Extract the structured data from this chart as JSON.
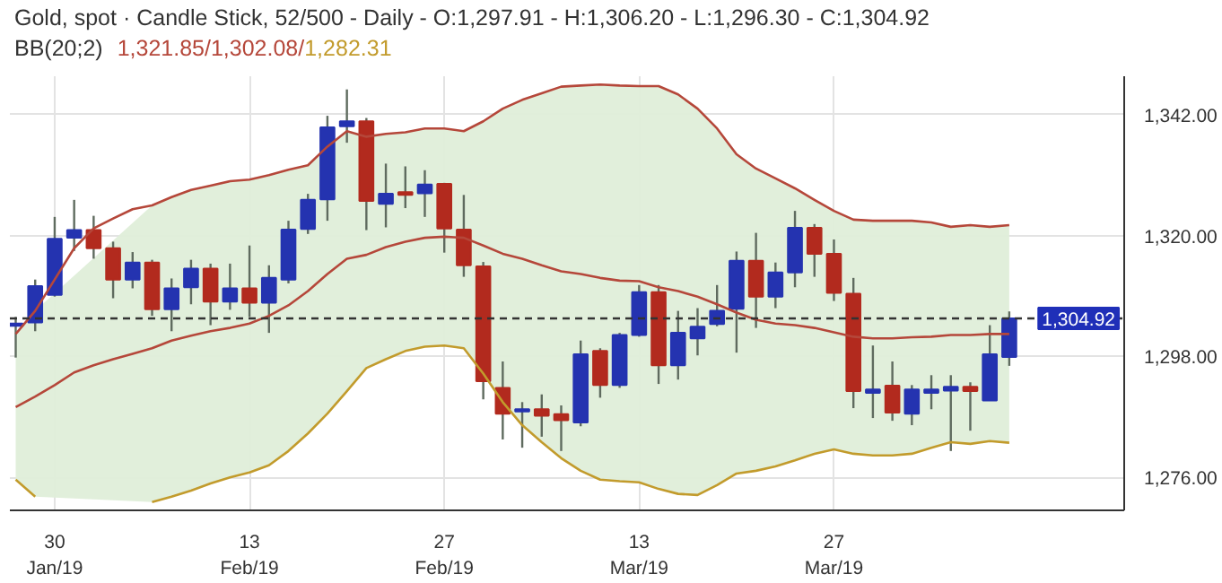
{
  "chart_data": {
    "type": "candlestick",
    "title": "Gold, spot · Candle Stick, 52/500 - Daily - O:1,297.91 - H:1,306.20 - L:1,296.30 - C:1,304.92",
    "annotations": [
      "BB(20;2)",
      "1,321.85/1,302.08/",
      "1,282.31"
    ],
    "categories": [
      null,
      null,
      "30\nJan/19",
      null,
      null,
      null,
      null,
      null,
      null,
      null,
      null,
      null,
      "13\nFeb/19",
      null,
      null,
      null,
      null,
      null,
      null,
      null,
      null,
      null,
      "27\nFeb/19",
      null,
      null,
      null,
      null,
      null,
      null,
      null,
      null,
      null,
      "13\nMar/19",
      null,
      null,
      null,
      null,
      null,
      null,
      null,
      null,
      null,
      "27\nMar/19",
      null,
      null,
      null,
      null,
      null,
      null,
      null,
      null,
      null
    ],
    "ohlc": [
      [
        1303.6,
        1305.2,
        1297.8,
        1304.0
      ],
      [
        1304.2,
        1312.0,
        1302.6,
        1310.8
      ],
      [
        1309.2,
        1323.4,
        1308.9,
        1319.4
      ],
      [
        1319.6,
        1326.5,
        1317.2,
        1321.0
      ],
      [
        1321.0,
        1323.6,
        1315.8,
        1317.7
      ],
      [
        1317.7,
        1318.9,
        1308.6,
        1312.0
      ],
      [
        1312.0,
        1317.0,
        1310.4,
        1315.1
      ],
      [
        1315.1,
        1315.6,
        1305.4,
        1306.6
      ],
      [
        1306.6,
        1312.2,
        1302.6,
        1310.4
      ],
      [
        1310.6,
        1315.6,
        1307.5,
        1314.0
      ],
      [
        1314.0,
        1314.9,
        1303.7,
        1308.0
      ],
      [
        1308.0,
        1314.9,
        1306.5,
        1310.4
      ],
      [
        1310.4,
        1318.2,
        1305.2,
        1307.8
      ],
      [
        1307.8,
        1314.6,
        1302.3,
        1312.3
      ],
      [
        1312.0,
        1322.7,
        1311.3,
        1321.1
      ],
      [
        1321.2,
        1327.6,
        1320.3,
        1326.5
      ],
      [
        1326.6,
        1341.8,
        1322.7,
        1339.7
      ],
      [
        1339.9,
        1346.6,
        1336.9,
        1340.8
      ],
      [
        1340.8,
        1341.4,
        1321.0,
        1326.3
      ],
      [
        1325.8,
        1333.1,
        1321.5,
        1327.6
      ],
      [
        1327.9,
        1332.6,
        1325.0,
        1327.4
      ],
      [
        1327.7,
        1331.9,
        1323.4,
        1329.3
      ],
      [
        1329.4,
        1329.6,
        1316.9,
        1321.3
      ],
      [
        1321.1,
        1327.4,
        1312.5,
        1314.6
      ],
      [
        1314.4,
        1315.2,
        1290.2,
        1293.5
      ],
      [
        1292.3,
        1297.1,
        1282.9,
        1287.6
      ],
      [
        1288.0,
        1289.7,
        1281.4,
        1288.4
      ],
      [
        1288.4,
        1291.1,
        1283.4,
        1287.2
      ],
      [
        1287.5,
        1289.1,
        1280.8,
        1286.4
      ],
      [
        1286.0,
        1300.9,
        1285.3,
        1298.4
      ],
      [
        1299.0,
        1299.5,
        1290.5,
        1292.8
      ],
      [
        1292.8,
        1302.3,
        1292.3,
        1301.9
      ],
      [
        1301.9,
        1311.0,
        1301.6,
        1309.7
      ],
      [
        1309.7,
        1311.0,
        1293.0,
        1296.4
      ],
      [
        1296.4,
        1306.3,
        1293.8,
        1302.3
      ],
      [
        1301.3,
        1306.8,
        1298.2,
        1303.4
      ],
      [
        1303.9,
        1311.0,
        1303.5,
        1306.3
      ],
      [
        1306.7,
        1317.1,
        1298.7,
        1315.4
      ],
      [
        1315.4,
        1320.5,
        1303.2,
        1308.9
      ],
      [
        1308.9,
        1315.1,
        1306.8,
        1313.3
      ],
      [
        1313.3,
        1324.5,
        1310.6,
        1321.4
      ],
      [
        1321.4,
        1322.1,
        1312.5,
        1316.7
      ],
      [
        1316.7,
        1319.3,
        1308.1,
        1309.6
      ],
      [
        1309.4,
        1312.3,
        1288.6,
        1291.7
      ],
      [
        1291.4,
        1300.0,
        1286.8,
        1292.0
      ],
      [
        1292.7,
        1297.1,
        1286.3,
        1287.8
      ],
      [
        1287.6,
        1292.8,
        1285.5,
        1292.0
      ],
      [
        1291.4,
        1294.6,
        1288.4,
        1292.0
      ],
      [
        1291.8,
        1294.6,
        1280.8,
        1292.5
      ],
      [
        1292.5,
        1293.3,
        1284.5,
        1291.7
      ],
      [
        1290.0,
        1303.7,
        1290.0,
        1298.4
      ],
      [
        1297.91,
        1306.2,
        1296.3,
        1304.92
      ]
    ],
    "colors": [
      "#2433b0",
      "#2433b0",
      "#2433b0",
      "#2433b0",
      "#b22a1e",
      "#b22a1e",
      "#2433b0",
      "#b22a1e",
      "#2433b0",
      "#2433b0",
      "#b22a1e",
      "#2433b0",
      "#b22a1e",
      "#2433b0",
      "#2433b0",
      "#2433b0",
      "#2433b0",
      "#2433b0",
      "#b22a1e",
      "#2433b0",
      "#b22a1e",
      "#2433b0",
      "#b22a1e",
      "#b22a1e",
      "#b22a1e",
      "#b22a1e",
      "#2433b0",
      "#b22a1e",
      "#b22a1e",
      "#2433b0",
      "#b22a1e",
      "#2433b0",
      "#2433b0",
      "#b22a1e",
      "#2433b0",
      "#2433b0",
      "#2433b0",
      "#2433b0",
      "#b22a1e",
      "#2433b0",
      "#2433b0",
      "#b22a1e",
      "#b22a1e",
      "#b22a1e",
      "#2433b0",
      "#b22a1e",
      "#2433b0",
      "#2433b0",
      "#2433b0",
      "#b22a1e",
      "#2433b0",
      "#2433b0"
    ],
    "series": [
      {
        "type": "line",
        "color": "#b5473a",
        "values": [
          1302.1,
          1306.3,
          1312.0,
          1317.7,
          1321.3,
          1323.1,
          1324.8,
          1325.5,
          1327.0,
          1328.3,
          1329.1,
          1329.9,
          1330.2,
          1331.0,
          1332.0,
          1332.8,
          1336.2,
          1339.0,
          1338.0,
          1338.5,
          1338.8,
          1339.5,
          1339.5,
          1339.0,
          1340.8,
          1343.1,
          1344.7,
          1345.9,
          1347.1,
          1347.3,
          1347.5,
          1347.3,
          1347.2,
          1347.2,
          1345.7,
          1343.1,
          1339.5,
          1334.8,
          1332.2,
          1330.4,
          1328.6,
          1326.5,
          1324.5,
          1322.9,
          1322.7,
          1322.7,
          1322.7,
          1322.4,
          1321.6,
          1321.9,
          1321.6,
          1321.9
        ]
      },
      {
        "type": "line",
        "color": "#b5473a",
        "values": [
          1288.8,
          1290.7,
          1292.8,
          1295.1,
          1296.4,
          1297.5,
          1298.5,
          1299.5,
          1300.9,
          1301.8,
          1302.6,
          1303.2,
          1304.0,
          1305.4,
          1307.3,
          1309.9,
          1313.0,
          1315.8,
          1316.5,
          1317.9,
          1318.9,
          1319.6,
          1319.8,
          1319.6,
          1318.2,
          1316.7,
          1315.8,
          1314.6,
          1313.5,
          1313.0,
          1312.3,
          1311.8,
          1311.7,
          1310.6,
          1309.9,
          1308.9,
          1307.5,
          1306.0,
          1304.7,
          1304.0,
          1303.7,
          1303.2,
          1302.4,
          1301.6,
          1301.3,
          1301.3,
          1301.5,
          1301.6,
          1301.9,
          1301.9,
          1302.1,
          1302.1
        ],
        "upper": [
          1302.1,
          1306.3,
          null,
          null,
          null,
          null,
          null,
          1325.5,
          1327.0,
          1328.3,
          1329.1,
          1329.9,
          1330.2,
          1331.0,
          1332.0,
          1332.8,
          1336.2,
          1339.0,
          1338.0,
          1338.5,
          1338.8,
          1339.5,
          1339.5,
          1339.0,
          1340.8,
          1343.1,
          1344.7,
          1345.9,
          1347.1,
          1347.3,
          1347.5,
          1347.3,
          1347.2,
          1347.2,
          1345.7,
          1343.1,
          1339.5,
          1334.8,
          1332.2,
          1330.4,
          1328.6,
          1326.5,
          1324.5,
          1322.9,
          1322.7,
          1322.7,
          1322.7,
          1322.4,
          1321.6,
          1321.9,
          1321.6,
          1321.9
        ],
        "lower": [
          1275.6,
          1272.5,
          null,
          null,
          null,
          null,
          null,
          1271.5,
          1272.5,
          1273.6,
          1274.9,
          1276.0,
          1276.9,
          1278.2,
          1280.8,
          1284.0,
          1287.6,
          1291.7,
          1295.9,
          1297.5,
          1299.0,
          1299.8,
          1300.0,
          1299.5,
          1294.9,
          1289.7,
          1285.5,
          1282.4,
          1279.5,
          1277.2,
          1275.6,
          1275.3,
          1275.1,
          1273.9,
          1273.0,
          1272.8,
          1274.6,
          1276.7,
          1277.2,
          1278.0,
          1279.1,
          1280.3,
          1281.1,
          1280.3,
          1280.0,
          1280.0,
          1280.3,
          1281.4,
          1282.4,
          1282.1,
          1282.6,
          1282.3
        ]
      },
      {
        "type": "line",
        "color": "#c29b2c",
        "values": [
          1275.6,
          1272.5,
          null,
          null,
          null,
          null,
          null,
          1271.5,
          1272.5,
          1273.6,
          1274.9,
          1276.0,
          1276.9,
          1278.2,
          1280.8,
          1284.0,
          1287.6,
          1291.7,
          1295.9,
          1297.5,
          1299.0,
          1299.8,
          1300.0,
          1299.5,
          1294.9,
          1289.7,
          1285.5,
          1282.4,
          1279.5,
          1277.2,
          1275.6,
          1275.3,
          1275.1,
          1273.9,
          1273.0,
          1272.8,
          1274.6,
          1276.7,
          1277.2,
          1278.0,
          1279.1,
          1280.3,
          1281.1,
          1280.3,
          1280.0,
          1280.0,
          1280.3,
          1281.4,
          1282.4,
          1282.1,
          1282.6,
          1282.3
        ]
      }
    ],
    "ylim": [
      1270,
      1349
    ],
    "yticks": [
      {
        "value": 1276,
        "label": "1,276.00"
      },
      {
        "value": 1298,
        "label": "1,298.00"
      },
      {
        "value": 1320,
        "label": "1,320.00"
      },
      {
        "value": 1342,
        "label": "1,342.00"
      }
    ],
    "ref_lines": [
      {
        "axis": "y",
        "value": 1304.92,
        "label": "1,304.92",
        "color": "#333333",
        "line_style": "dashed"
      }
    ],
    "grid": true
  }
}
